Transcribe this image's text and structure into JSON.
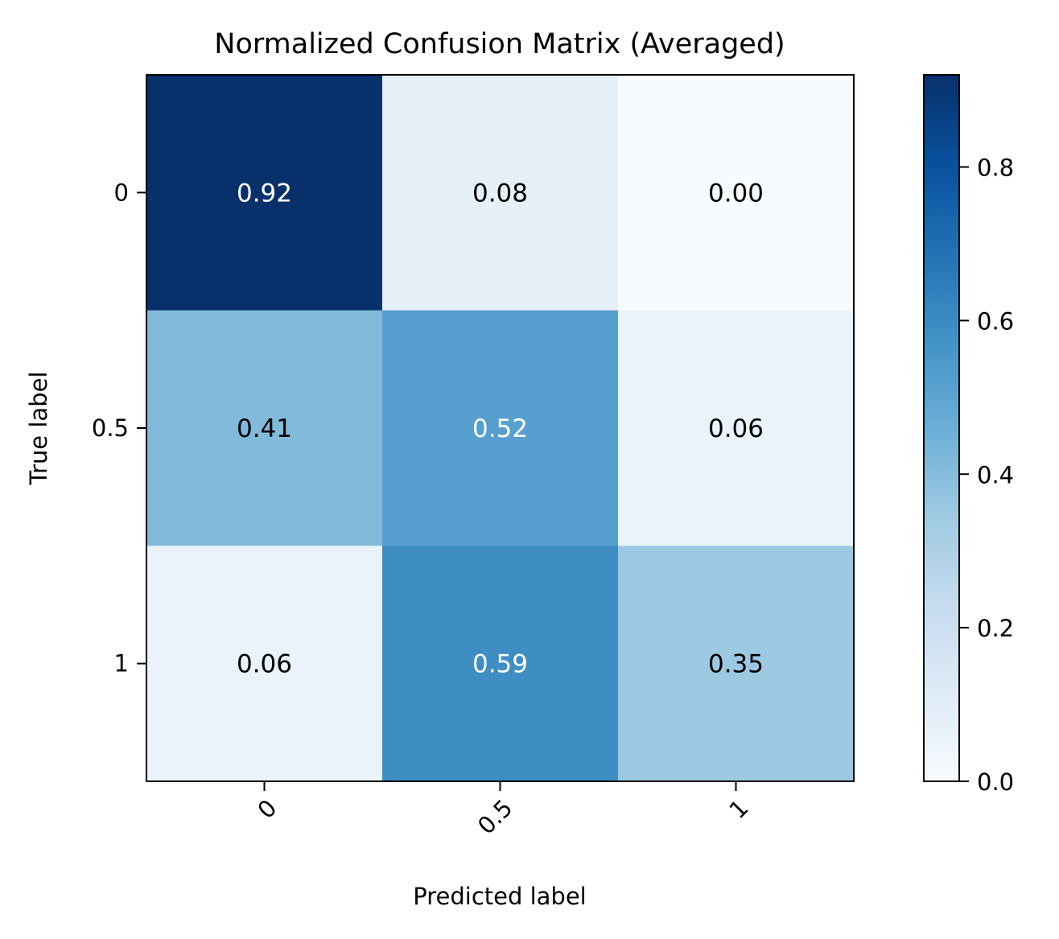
{
  "chart_data": {
    "type": "heatmap",
    "title": "Normalized Confusion Matrix (Averaged)",
    "xlabel": "Predicted label",
    "ylabel": "True label",
    "x_categories": [
      "0",
      "0.5",
      "1"
    ],
    "y_categories": [
      "0",
      "0.5",
      "1"
    ],
    "values": [
      [
        0.92,
        0.08,
        0.0
      ],
      [
        0.41,
        0.52,
        0.06
      ],
      [
        0.06,
        0.59,
        0.35
      ]
    ],
    "value_labels": [
      [
        "0.92",
        "0.08",
        "0.00"
      ],
      [
        "0.41",
        "0.52",
        "0.06"
      ],
      [
        "0.06",
        "0.59",
        "0.35"
      ]
    ],
    "colormap": "Blues",
    "colorbar": {
      "range": [
        0,
        0.92
      ],
      "ticks": [
        0.0,
        0.2,
        0.4,
        0.6,
        0.8
      ],
      "tick_labels": [
        "0.0",
        "0.2",
        "0.4",
        "0.6",
        "0.8"
      ]
    },
    "x_tick_rotation": "45",
    "grid": false,
    "text_colors": {
      "dark": "#000000",
      "light": "#ffffff"
    }
  }
}
